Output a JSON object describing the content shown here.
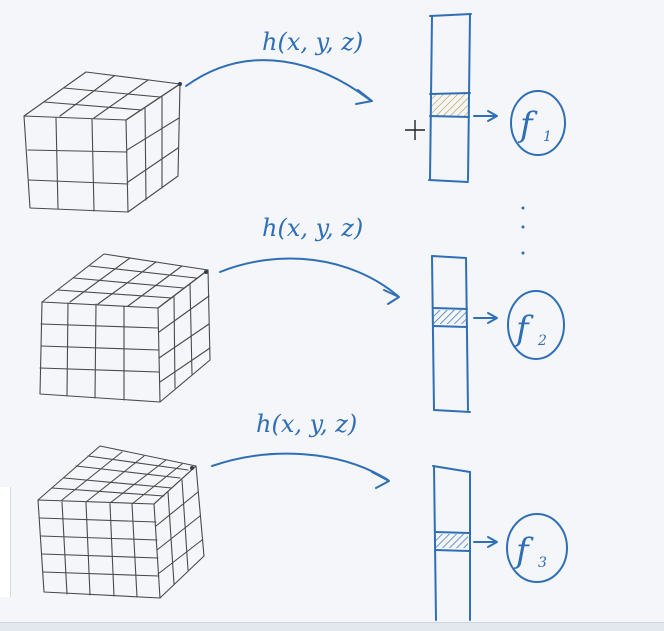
{
  "rows": [
    {
      "func_label": "h(x, y, z)",
      "feature_label": "f",
      "feature_subscript": "1"
    },
    {
      "func_label": "h(x, y, z)",
      "feature_label": "f",
      "feature_subscript": "2"
    },
    {
      "func_label": "h(x, y, z)",
      "feature_label": "f",
      "feature_subscript": "3"
    }
  ],
  "colors": {
    "ink_blue": "#2f6fb5",
    "ink_gray": "#4a4a4a",
    "background": "#f4f6f9"
  }
}
